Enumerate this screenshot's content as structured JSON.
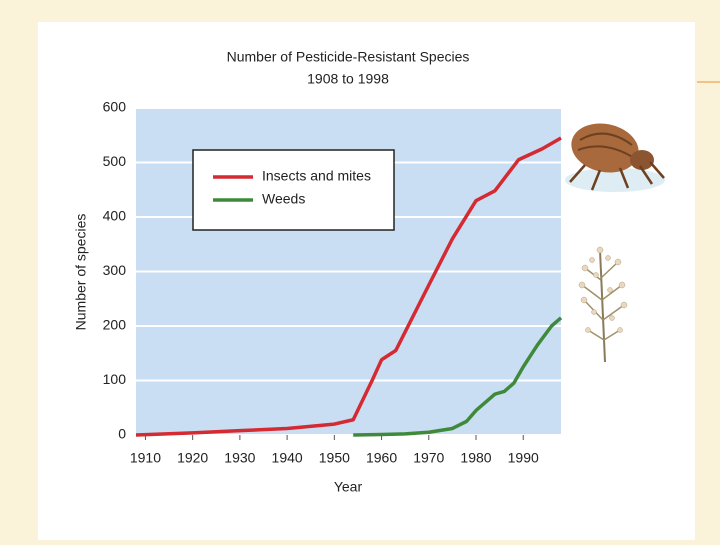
{
  "chart_data": {
    "type": "line",
    "title": "Number of Pesticide-Resistant Species",
    "subtitle": "1908 to 1998",
    "xlabel": "Year",
    "ylabel": "Number of species",
    "xlim": [
      1908,
      1998
    ],
    "ylim": [
      0,
      600
    ],
    "xticks": [
      1910,
      1920,
      1930,
      1940,
      1950,
      1960,
      1970,
      1980,
      1990
    ],
    "yticks": [
      0,
      100,
      200,
      300,
      400,
      500,
      600
    ],
    "grid": true,
    "legend": "upper left",
    "series": [
      {
        "name": "Insects and mites",
        "color": "#d42a32",
        "x": [
          1908,
          1920,
          1930,
          1940,
          1950,
          1954,
          1958,
          1960,
          1963,
          1970,
          1975,
          1980,
          1984,
          1989,
          1994,
          1998
        ],
        "values": [
          0,
          4,
          8,
          12,
          20,
          28,
          100,
          138,
          155,
          275,
          360,
          430,
          448,
          505,
          525,
          545
        ]
      },
      {
        "name": "Weeds",
        "color": "#3f8a3a",
        "x": [
          1954,
          1960,
          1965,
          1970,
          1975,
          1978,
          1980,
          1982,
          1984,
          1986,
          1988,
          1990,
          1993,
          1996,
          1998
        ],
        "values": [
          0,
          1,
          2,
          5,
          12,
          25,
          45,
          60,
          75,
          80,
          95,
          125,
          165,
          200,
          215
        ]
      }
    ]
  }
}
